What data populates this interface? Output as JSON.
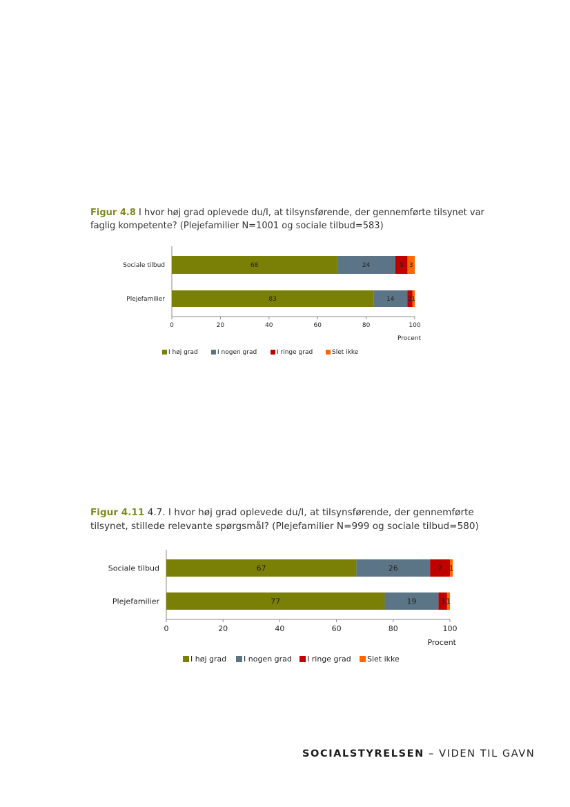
{
  "chart_data": [
    {
      "type": "bar",
      "orientation": "horizontal",
      "stacked": true,
      "figure_label": "Figur 4.8",
      "title": "I hvor høj grad oplevede du/I, at tilsynsførende, der gennemførte tilsynet var faglig kompetente? (Plejefamilier N=1001 og sociale tilbud=583)",
      "xlabel": "Procent",
      "ylabel": "",
      "xlim": [
        0,
        100
      ],
      "x_ticks": [
        "0",
        "20",
        "40",
        "60",
        "80",
        "100"
      ],
      "categories": [
        "Sociale tilbud",
        "Plejefamilier"
      ],
      "series": [
        {
          "name": "I høj grad",
          "color": "#7a8005",
          "values": [
            68,
            83
          ]
        },
        {
          "name": "I nogen grad",
          "color": "#5b7586",
          "values": [
            24,
            14
          ]
        },
        {
          "name": "I ringe grad",
          "color": "#c00000",
          "values": [
            5,
            2
          ]
        },
        {
          "name": "Slet ikke",
          "color": "#ff6600",
          "values": [
            3,
            1
          ]
        }
      ],
      "grid": false,
      "legend_position": "bottom"
    },
    {
      "type": "bar",
      "orientation": "horizontal",
      "stacked": true,
      "figure_label": "Figur 4.11",
      "title": "4.7. I hvor høj grad oplevede du/I, at tilsynsførende, der gennemførte tilsynet, stillede relevante spørgsmål? (Plejefamilier N=999 og sociale tilbud=580)",
      "xlabel": "Procent",
      "ylabel": "",
      "xlim": [
        0,
        100
      ],
      "x_ticks": [
        "0",
        "20",
        "40",
        "60",
        "80",
        "100"
      ],
      "categories": [
        "Sociale tilbud",
        "Plejefamilier"
      ],
      "series": [
        {
          "name": "I høj grad",
          "color": "#7a8005",
          "values": [
            67,
            77
          ]
        },
        {
          "name": "I nogen grad",
          "color": "#5b7586",
          "values": [
            26,
            19
          ]
        },
        {
          "name": "I ringe grad",
          "color": "#c00000",
          "values": [
            7,
            3
          ]
        },
        {
          "name": "Slet ikke",
          "color": "#ff6600",
          "values": [
            1,
            1
          ]
        }
      ],
      "grid": false,
      "legend_position": "bottom"
    }
  ],
  "footer": {
    "brand": "SOCIALSTYRELSEN",
    "tagline": " – VIDEN TIL GAVN"
  }
}
